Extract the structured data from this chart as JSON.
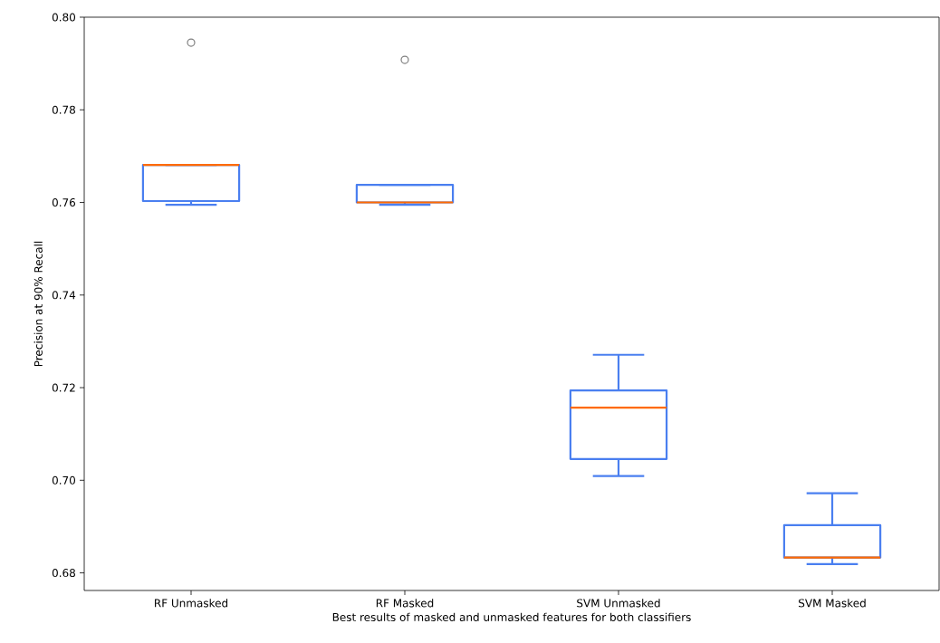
{
  "chart_data": {
    "type": "box",
    "xlabel": "Best results of masked and unmasked features for both classifiers",
    "ylabel": "Precision at 90% Recall",
    "categories": [
      "RF Unmasked",
      "RF Masked",
      "SVM Unmasked",
      "SVM Masked"
    ],
    "color": "#4a7ff0",
    "boxes": [
      {
        "low": 0.7595,
        "q1": 0.7603,
        "median": 0.7681,
        "q3": 0.7681,
        "high": 0.7681,
        "outliers": [
          0.7945
        ]
      },
      {
        "low": 0.7595,
        "q1": 0.76,
        "median": 0.76,
        "q3": 0.7638,
        "high": 0.7638,
        "outliers": [
          0.7908
        ]
      },
      {
        "low": 0.7009,
        "q1": 0.7046,
        "median": 0.7157,
        "q3": 0.7194,
        "high": 0.7271
      },
      {
        "low": 0.6819,
        "q1": 0.6833,
        "median": 0.6833,
        "q3": 0.6903,
        "high": 0.6972
      }
    ],
    "ylim": [
      0.6762,
      0.8
    ],
    "yticks": [
      {
        "value": 0.68,
        "label": "0.68"
      },
      {
        "value": 0.7,
        "label": "0.70"
      },
      {
        "value": 0.72,
        "label": "0.72"
      },
      {
        "value": 0.74,
        "label": "0.74"
      },
      {
        "value": 0.76,
        "label": "0.76"
      },
      {
        "value": 0.78,
        "label": "0.78"
      },
      {
        "value": 0.8,
        "label": "0.80"
      }
    ]
  }
}
